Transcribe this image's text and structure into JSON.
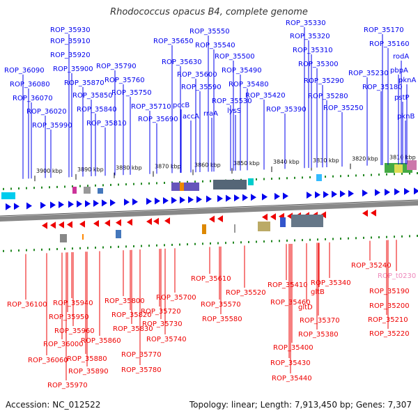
{
  "title": "Rhodococcus opacus B4, complete genome",
  "accession": "Accession: NC_012522",
  "summary": "Topology: linear; Length: 7,913,450 bp; Genes: 7,307",
  "colors": {
    "forward": "#0000ee",
    "reverse": "#ee0000",
    "trna": "#ee88bb",
    "backbone": "#888888",
    "dots": "#228822"
  },
  "ticks": [
    "3900 kbp",
    "3890 kbp",
    "3880 kbp",
    "3870 kbp",
    "3860 kbp",
    "3850 kbp",
    "3840 kbp",
    "3830 kbp",
    "3820 kbp",
    "3810 kbp"
  ],
  "top_labels": [
    "ROP_35930",
    "ROP_35910",
    "ROP_35920",
    "ROP_35900",
    "ROP_36090",
    "ROP_35870",
    "ROP_36080",
    "ROP_35850",
    "ROP_36070",
    "ROP_35840",
    "ROP_36020",
    "ROP_35810",
    "ROP_35990",
    "ROP_35790",
    "ROP_35760",
    "ROP_35750",
    "ROP_35710",
    "ROP_35690",
    "ROP_35650",
    "ROP_35630",
    "ROP_35600",
    "pccB",
    "ROP_35590",
    "accA",
    "rraA",
    "ROP_35550",
    "ROP_35540",
    "ROP_35530",
    "ROP_35500",
    "ROP_35490",
    "lysS",
    "ROP_35480",
    "ROP_35420",
    "ROP_35390",
    "ROP_35330",
    "ROP_35320",
    "ROP_35310",
    "ROP_35300",
    "ROP_35290",
    "ROP_35280",
    "ROP_35250",
    "ROP_35170",
    "ROP_35160",
    "rodA",
    "ROP_35230",
    "pbpA",
    "ROP_35180",
    "pknA",
    "pstP",
    "pknB"
  ],
  "bottom_labels": [
    "ROP_36100",
    "ROP_35940",
    "ROP_35950",
    "ROP_35960",
    "ROP_36000",
    "ROP_36060",
    "ROP_35880",
    "ROP_35860",
    "ROP_35970",
    "ROP_35890",
    "ROP_35800",
    "ROP_35820",
    "ROP_35830",
    "ROP_35770",
    "ROP_35780",
    "ROP_35700",
    "ROP_35720",
    "ROP_35730",
    "ROP_35740",
    "ROP_35610",
    "ROP_35520",
    "ROP_35570",
    "ROP_35580",
    "ROP_35410",
    "ROP_35460",
    "gltD",
    "ROP_35370",
    "ROP_35380",
    "ROP_35400",
    "ROP_35430",
    "ROP_35440",
    "gltB",
    "ROP_35340",
    "ROP_35240",
    "ROP_t0230",
    "ROP_35190",
    "ROP_35200",
    "ROP_35210",
    "ROP_35220"
  ]
}
